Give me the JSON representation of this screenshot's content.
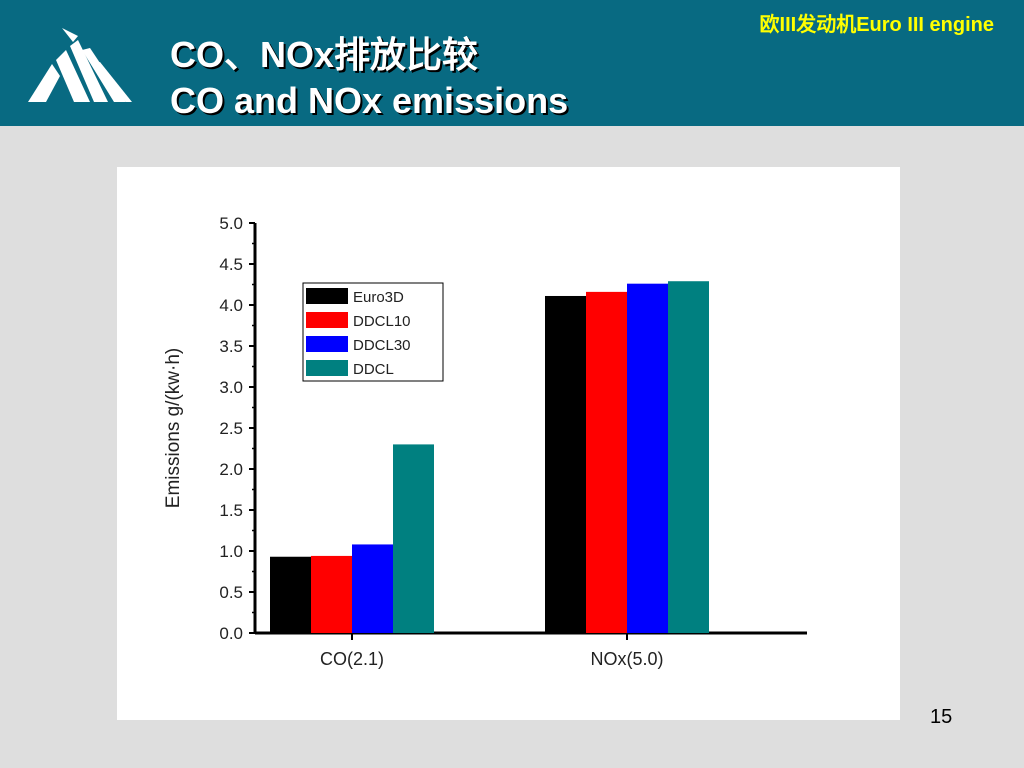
{
  "header": {
    "title_zh": "CO、NOx排放比较",
    "title_en": "CO and NOx emissions",
    "corner_label": "欧III发动机Euro III engine",
    "bg_color": "#086a82",
    "label_color": "#ffff00"
  },
  "footer": {
    "page_number": "15"
  },
  "chart_data": {
    "type": "bar",
    "title": "",
    "xlabel": "",
    "ylabel": "Emissions   g/(kw·h)",
    "ylim": [
      0,
      5.0
    ],
    "yticks": [
      "0.0",
      "0.5",
      "1.0",
      "1.5",
      "2.0",
      "2.5",
      "3.0",
      "3.5",
      "4.0",
      "4.5",
      "5.0"
    ],
    "categories": [
      "CO(2.1)",
      "NOx(5.0)"
    ],
    "series": [
      {
        "name": "Euro3D",
        "color": "#000000",
        "values": [
          0.93,
          4.11
        ]
      },
      {
        "name": "DDCL10",
        "color": "#ff0000",
        "values": [
          0.94,
          4.16
        ]
      },
      {
        "name": "DDCL30",
        "color": "#0000ff",
        "values": [
          1.08,
          4.26
        ]
      },
      {
        "name": "DDCL",
        "color": "#008080",
        "values": [
          2.3,
          4.29
        ]
      }
    ],
    "legend_position": "top-left",
    "grid": false
  }
}
